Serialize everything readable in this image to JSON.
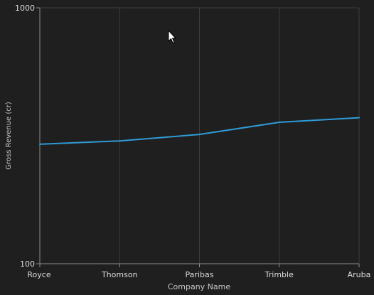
{
  "chart_data": {
    "type": "line",
    "categories": [
      "Royce",
      "Thomson",
      "Paribas",
      "Trimble",
      "Aruba"
    ],
    "series": [
      {
        "values": [
          293,
          302,
          320,
          357,
          372
        ]
      }
    ],
    "xlabel": "Company Name",
    "ylabel": "Gross Revenue (cr)",
    "ylim": [
      100,
      1000
    ],
    "yscale": "log",
    "ytick_labels": [
      "100",
      "1000"
    ],
    "grid": "vertical",
    "colors": {
      "background": "#1f1f1f",
      "axis": "#8c8c8c",
      "grid": "#3c3c3c",
      "line": "#2f9bd6",
      "text": "#dcdcdc",
      "title_text": "#c8c8c8"
    }
  },
  "cursor": {
    "icon": "pointer-arrow-icon"
  }
}
